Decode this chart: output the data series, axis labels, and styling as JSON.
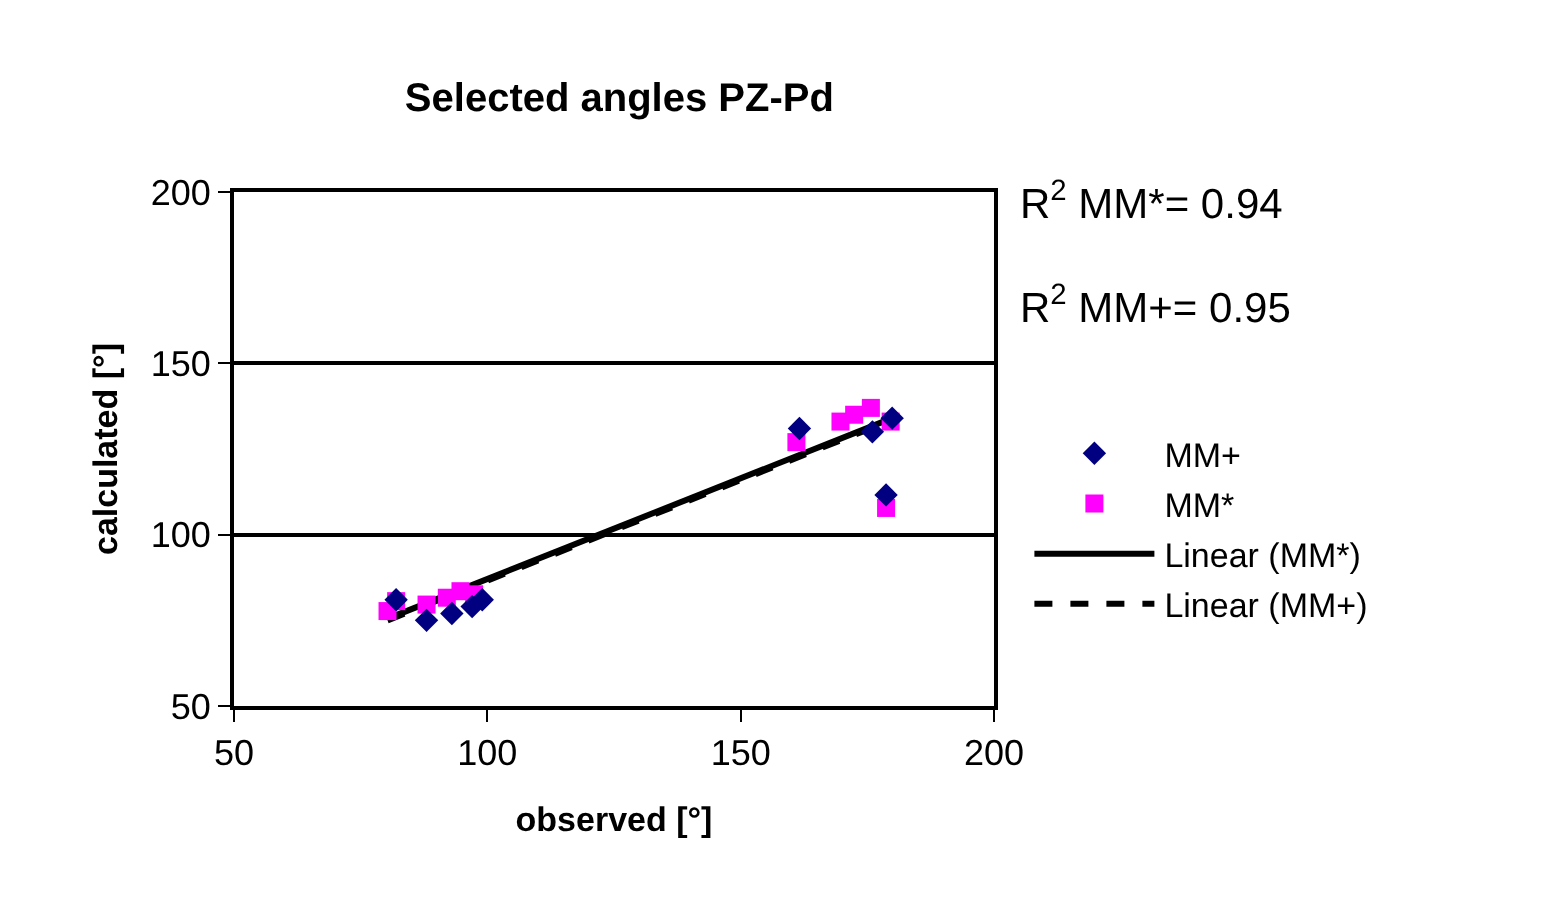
{
  "chart_data": {
    "type": "scatter",
    "title": "Selected angles PZ-Pd",
    "xlabel": "observed [°]",
    "ylabel": "calculated [°]",
    "annotations": [
      "R$^{2}$ MM*= 0.94",
      "R$^{2}$ MM+= 0.95"
    ],
    "xlim": [
      50,
      200
    ],
    "xticks": [
      50,
      100,
      150,
      200
    ],
    "ylim": [
      50,
      200
    ],
    "yticks": [
      50,
      100,
      150,
      200
    ],
    "grid": "y",
    "legend": "right",
    "series": [
      {
        "name": "MM+",
        "marker": "diamond",
        "color": "#000080",
        "x": [
          82,
          88,
          93,
          97,
          99,
          161.6,
          176,
          179.9,
          178.7
        ],
        "values": [
          81,
          75,
          77,
          79,
          81,
          131,
          130,
          134,
          111.6
        ]
      },
      {
        "name": "MM*",
        "marker": "square",
        "color": "#ff00ff",
        "x": [
          80.3,
          82,
          88,
          92,
          94.7,
          97.4,
          161,
          169.7,
          172.4,
          175.7,
          179.6,
          178.7
        ],
        "values": [
          77.7,
          80.6,
          79.6,
          81.6,
          83.5,
          82.6,
          127,
          133,
          135,
          137,
          133,
          107.8
        ]
      },
      {
        "name": "Linear (MM*)",
        "type": "line",
        "line_style": "solid",
        "color": "#000000",
        "x": [
          80.3,
          179.9
        ],
        "values": [
          75.5,
          134
        ]
      },
      {
        "name": "Linear (MM+)",
        "type": "line",
        "line_style": "dashed",
        "color": "#000000",
        "x": [
          80.3,
          179.9
        ],
        "values": [
          75,
          133.5
        ]
      }
    ]
  }
}
